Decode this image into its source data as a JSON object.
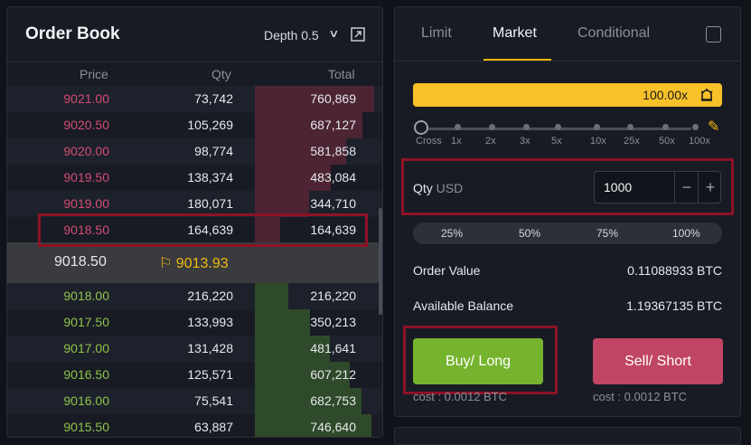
{
  "order_book": {
    "title": "Order Book",
    "depth_label": "Depth 0.5",
    "headers": {
      "price": "Price",
      "qty": "Qty",
      "total": "Total"
    },
    "asks": [
      {
        "price": "9021.00",
        "qty": "73,742",
        "total": "760,869"
      },
      {
        "price": "9020.50",
        "qty": "105,269",
        "total": "687,127"
      },
      {
        "price": "9020.00",
        "qty": "98,774",
        "total": "581,858"
      },
      {
        "price": "9019.50",
        "qty": "138,374",
        "total": "483,084"
      },
      {
        "price": "9019.00",
        "qty": "180,071",
        "total": "344,710"
      },
      {
        "price": "9018.50",
        "qty": "164,639",
        "total": "164,639"
      }
    ],
    "last_price": "9018.50",
    "mark_price": "9013.93",
    "bids": [
      {
        "price": "9018.00",
        "qty": "216,220",
        "total": "216,220"
      },
      {
        "price": "9017.50",
        "qty": "133,993",
        "total": "350,213"
      },
      {
        "price": "9017.00",
        "qty": "131,428",
        "total": "481,641"
      },
      {
        "price": "9016.50",
        "qty": "125,571",
        "total": "607,212"
      },
      {
        "price": "9016.00",
        "qty": "75,541",
        "total": "682,753"
      },
      {
        "price": "9015.50",
        "qty": "63,887",
        "total": "746,640"
      }
    ]
  },
  "trade": {
    "tabs": [
      "Limit",
      "Market",
      "Conditional"
    ],
    "active_tab": "Market",
    "leverage": "100.00x",
    "leverage_marks": [
      "Cross",
      "1x",
      "2x",
      "3x",
      "5x",
      "10x",
      "25x",
      "50x",
      "100x"
    ],
    "qty_label": "Qty",
    "qty_unit": "USD",
    "qty_value": "1000",
    "percent_options": [
      "25%",
      "50%",
      "75%",
      "100%"
    ],
    "order_value_label": "Order Value",
    "order_value": "0.11088933 BTC",
    "available_balance_label": "Available Balance",
    "available_balance": "1.19367135 BTC",
    "buy_label": "Buy/ Long",
    "sell_label": "Sell/ Short",
    "buy_cost": "cost : 0.0012 BTC",
    "sell_cost": "cost : 0.0012 BTC"
  },
  "colors": {
    "ask_price": "#d24d74",
    "bid_price": "#8fc34a",
    "accent": "#f0b90b",
    "buy_button": "#76b42f",
    "sell_button": "#c14564",
    "highlight_border": "#8e1227"
  }
}
